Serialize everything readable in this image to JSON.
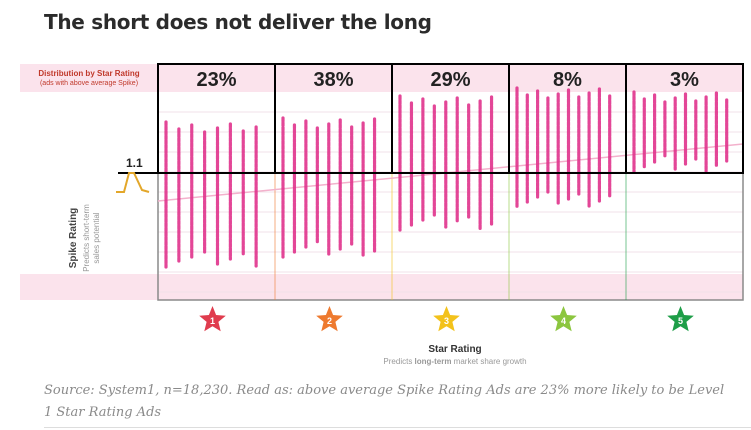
{
  "page": {
    "title": "The short does not deliver the long",
    "caption": "Source: System1, n=18,230. Read as: above average Spike Rating Ads are 23% more likely to be Level 1 Star Rating Ads"
  },
  "chart_data": {
    "type": "scatter",
    "title": "The short does not deliver the long",
    "panel_title": "Distribution by Star Rating",
    "panel_subtitle": "(ads with above average Spike)",
    "xlabel": "Star Rating",
    "xsublabel_pre": "Predicts ",
    "xsublabel_bold": "long-term",
    "xsublabel_post": " market share growth",
    "ylabel": "Spike Rating",
    "ysublabel_1": "Predicts short-term",
    "ysublabel_2": "sales potential",
    "threshold_label": "1.1",
    "categories": [
      "1",
      "2",
      "3",
      "4",
      "5"
    ],
    "distribution_pct": [
      23,
      38,
      29,
      8,
      3
    ],
    "distribution_labels": [
      "23%",
      "38%",
      "29%",
      "8%",
      "3%"
    ],
    "star_colors": [
      "#e03c4e",
      "#ee7a2f",
      "#f3c21b",
      "#8cc63f",
      "#1e9e48"
    ],
    "point_color": "#e0338c",
    "highlight_color": "#000000",
    "band_color": "#fbe3ec"
  }
}
